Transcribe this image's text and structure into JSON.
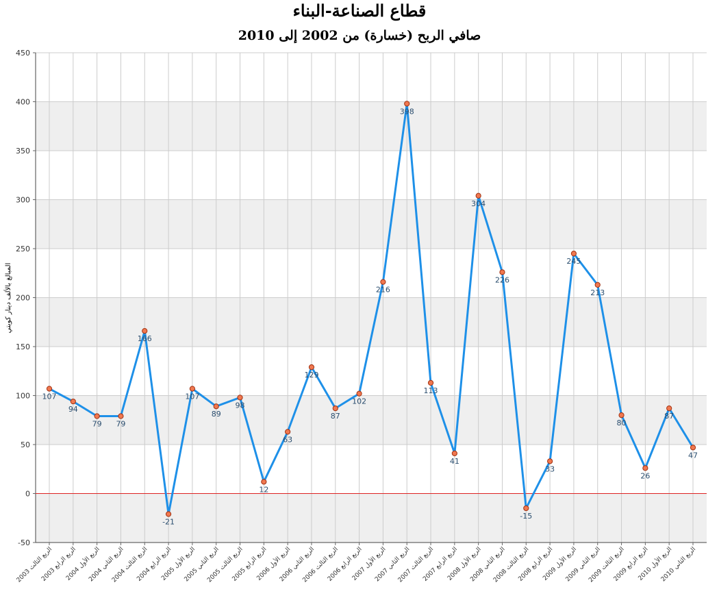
{
  "chart_data": {
    "type": "line",
    "title": "قطاع الصناعة-البناء",
    "subtitle": "صافي الربح (خسارة) من 2002 إلى 2010",
    "ylabel": "المبالغ بالألف دينار كويتي",
    "xlabel": "",
    "ylim": [
      -50,
      450
    ],
    "yticks": [
      -50,
      0,
      50,
      100,
      150,
      200,
      250,
      300,
      350,
      400,
      450
    ],
    "grid": true,
    "legend": "none",
    "categories": [
      "الربع الثالث 2003",
      "الربع الرابع 2003",
      "الربع الأول 2004",
      "الربع الثاني 2004",
      "الربع الثالث 2004",
      "الربع الرابع 2004",
      "الربع الأول 2005",
      "الربع الثاني 2005",
      "الربع الثالث 2005",
      "الربع الرابع 2005",
      "الربع الأول 2006",
      "الربع الثاني 2006",
      "الربع الثالث 2006",
      "الربع الرابع 2006",
      "الربع الأول 2007",
      "الربع الثاني 2007",
      "الربع الثالث 2007",
      "الربع الرابع 2007",
      "الربع الأول 2008",
      "الربع الثاني 2008",
      "الربع الثالث 2008",
      "الربع الرابع 2008",
      "الربع الأول 2009",
      "الربع الثاني 2009",
      "الربع الثالث 2009",
      "الربع الرابع 2009",
      "الربع الأول 2010",
      "الربع الثاني 2010"
    ],
    "series": [
      {
        "values": [
          107,
          94,
          79,
          79,
          166,
          -21,
          107,
          89,
          98,
          12,
          63,
          129,
          87,
          102,
          216,
          398,
          113,
          41,
          304,
          226,
          -15,
          33,
          245,
          213,
          80,
          26,
          87,
          47
        ]
      }
    ],
    "colors": {
      "line": "#1e90e8",
      "marker_fill": "#f07850",
      "marker_stroke": "#a03010",
      "zero_line": "#dd2222",
      "band": "#efefef",
      "grid": "#cccccc",
      "label": "#2a4d6e"
    }
  }
}
